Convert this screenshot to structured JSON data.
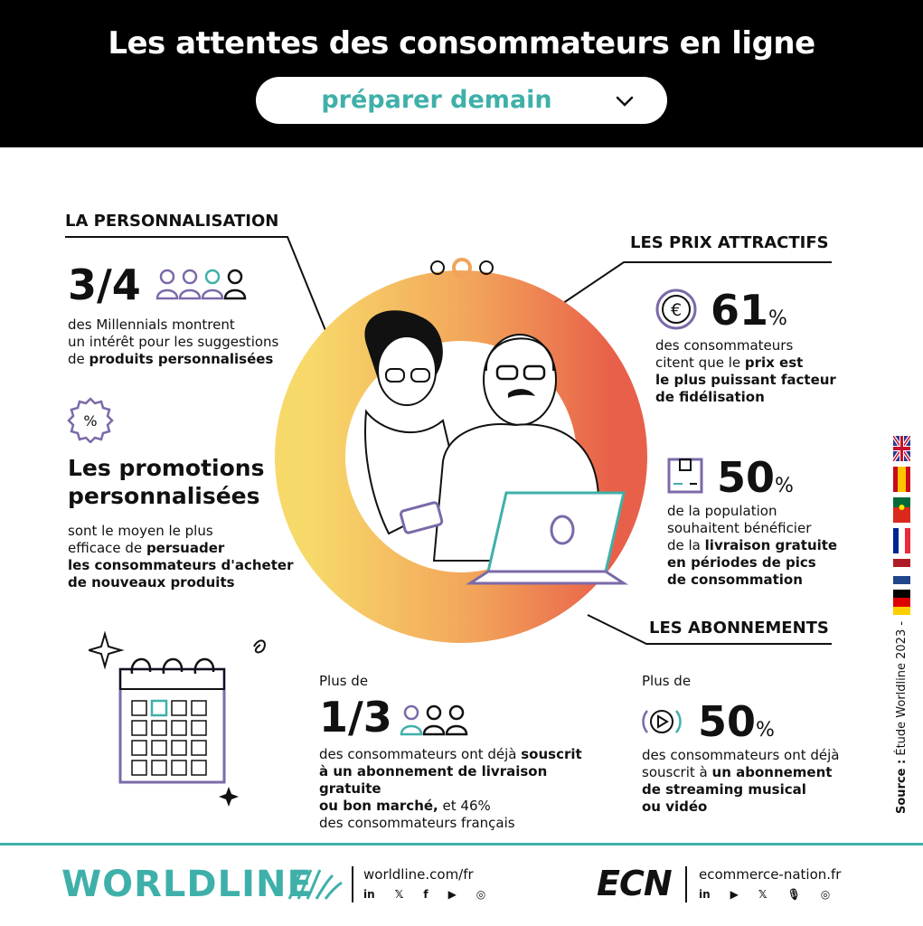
{
  "header": {
    "title": "Les attentes des consommateurs en ligne",
    "selector_label": "préparer demain"
  },
  "personalisation": {
    "heading": "LA PERSONNALISATION",
    "stat": "3/4",
    "text_1": "des Millennials montrent",
    "text_2": "un intérêt pour les suggestions",
    "text_3_pre": "de ",
    "text_3_bold": "produits personnalisées"
  },
  "promotions": {
    "title_1": "Les promotions",
    "title_2": "personnalisées",
    "text_1": "sont le moyen le plus",
    "text_2_pre": "efficace de ",
    "text_2_bold": "persuader",
    "text_3_bold": "les consommateurs d'acheter",
    "text_4_bold": "de nouveaux produits"
  },
  "prix": {
    "heading": "LES PRIX ATTRACTIFS",
    "stat_1": "61",
    "stat_1_unit": "%",
    "text_1": "des consommateurs",
    "text_2_pre": "citent que le ",
    "text_2_bold": "prix est",
    "text_3_bold": "le plus puissant facteur",
    "text_4_bold": "de fidélisation",
    "stat_2": "50",
    "stat_2_unit": "%",
    "text_5": "de la population",
    "text_6": "souhaitent bénéficier",
    "text_7_pre": "de la ",
    "text_7_bold": "livraison gratuite",
    "text_8_bold": "en périodes de pics",
    "text_9_bold": "de consommation"
  },
  "abonnements": {
    "heading": "LES ABONNEMENTS",
    "left_prefix": "Plus de",
    "left_stat": "1/3",
    "left_text_1_pre": "des consommateurs ont déjà ",
    "left_text_1_bold": "souscrit",
    "left_text_2_bold": "à un abonnement de livraison gratuite",
    "left_text_3_bold": "ou bon marché,",
    "left_text_3_post": " et 46%",
    "left_text_4": "des consommateurs français",
    "right_prefix": "Plus de",
    "right_stat": "50",
    "right_stat_unit": "%",
    "right_text_1": "des consommateurs ont déjà",
    "right_text_2_pre": "souscrit à ",
    "right_text_2_bold": "un abonnement",
    "right_text_3_bold": "de streaming musical",
    "right_text_4_bold": "ou vidéo"
  },
  "source": {
    "label": "Source :",
    "text": "Étude Worldline 2023",
    "dash": "-"
  },
  "footer": {
    "worldline_logo": "WORLDLINE",
    "worldline_url": "worldline.com/fr",
    "worldline_social": [
      "in",
      "𝕏",
      "f",
      "▶",
      "◎"
    ],
    "ecn_logo": "ECN",
    "ecn_url": "ecommerce-nation.fr",
    "ecn_social": [
      "in",
      "▶",
      "𝕏",
      "🎙",
      "◎"
    ]
  },
  "colors": {
    "teal": "#3fb0a9",
    "purple": "#7b6aa8",
    "ring_start": "#f7d96a",
    "ring_end": "#e8604a"
  }
}
